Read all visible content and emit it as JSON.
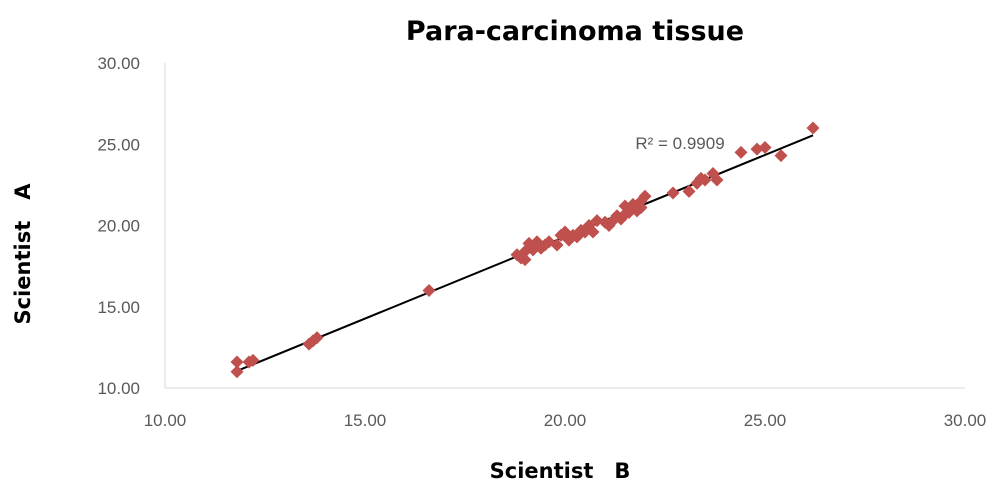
{
  "chart_data": {
    "type": "scatter",
    "title": "Para-carcinoma tissue",
    "xlabel": "Scientist　B",
    "ylabel": "Scientist　A",
    "xlim": [
      10,
      30
    ],
    "ylim": [
      10,
      30
    ],
    "x_ticks": [
      "10.00",
      "15.00",
      "20.00",
      "25.00",
      "30.00"
    ],
    "y_ticks": [
      "10.00",
      "15.00",
      "20.00",
      "25.00",
      "30.00"
    ],
    "grid": false,
    "marker": "diamond",
    "marker_color": "#c0504d",
    "trendline": {
      "x0": 11.8,
      "y0": 11.05,
      "x1": 26.2,
      "y1": 25.55,
      "color": "#000000"
    },
    "annotation": "R² = 0.9909",
    "series": [
      {
        "points": [
          [
            11.8,
            11.0
          ],
          [
            11.8,
            11.6
          ],
          [
            12.1,
            11.6
          ],
          [
            12.2,
            11.7
          ],
          [
            13.6,
            12.7
          ],
          [
            13.7,
            12.9
          ],
          [
            13.8,
            13.1
          ],
          [
            16.6,
            16.0
          ],
          [
            18.8,
            18.2
          ],
          [
            18.9,
            18.0
          ],
          [
            19.0,
            17.9
          ],
          [
            19.0,
            18.4
          ],
          [
            19.1,
            18.9
          ],
          [
            19.2,
            18.5
          ],
          [
            19.3,
            19.0
          ],
          [
            19.4,
            18.6
          ],
          [
            19.5,
            18.8
          ],
          [
            19.6,
            19.0
          ],
          [
            19.8,
            18.8
          ],
          [
            19.9,
            19.4
          ],
          [
            20.0,
            19.6
          ],
          [
            20.1,
            19.1
          ],
          [
            20.2,
            19.4
          ],
          [
            20.3,
            19.3
          ],
          [
            20.4,
            19.7
          ],
          [
            20.5,
            19.6
          ],
          [
            20.6,
            20.0
          ],
          [
            20.7,
            19.6
          ],
          [
            20.8,
            20.3
          ],
          [
            21.0,
            20.2
          ],
          [
            21.1,
            20.0
          ],
          [
            21.2,
            20.3
          ],
          [
            21.3,
            20.6
          ],
          [
            21.4,
            20.4
          ],
          [
            21.5,
            20.7
          ],
          [
            21.5,
            21.2
          ],
          [
            21.6,
            20.8
          ],
          [
            21.7,
            21.3
          ],
          [
            21.8,
            20.9
          ],
          [
            21.9,
            21.5
          ],
          [
            21.9,
            21.1
          ],
          [
            22.0,
            21.8
          ],
          [
            22.7,
            22.0
          ],
          [
            23.1,
            22.1
          ],
          [
            23.3,
            22.6
          ],
          [
            23.4,
            22.9
          ],
          [
            23.5,
            22.8
          ],
          [
            23.7,
            23.2
          ],
          [
            23.8,
            22.8
          ],
          [
            24.4,
            24.5
          ],
          [
            24.8,
            24.7
          ],
          [
            25.0,
            24.8
          ],
          [
            25.4,
            24.3
          ],
          [
            26.2,
            26.0
          ]
        ]
      }
    ]
  }
}
